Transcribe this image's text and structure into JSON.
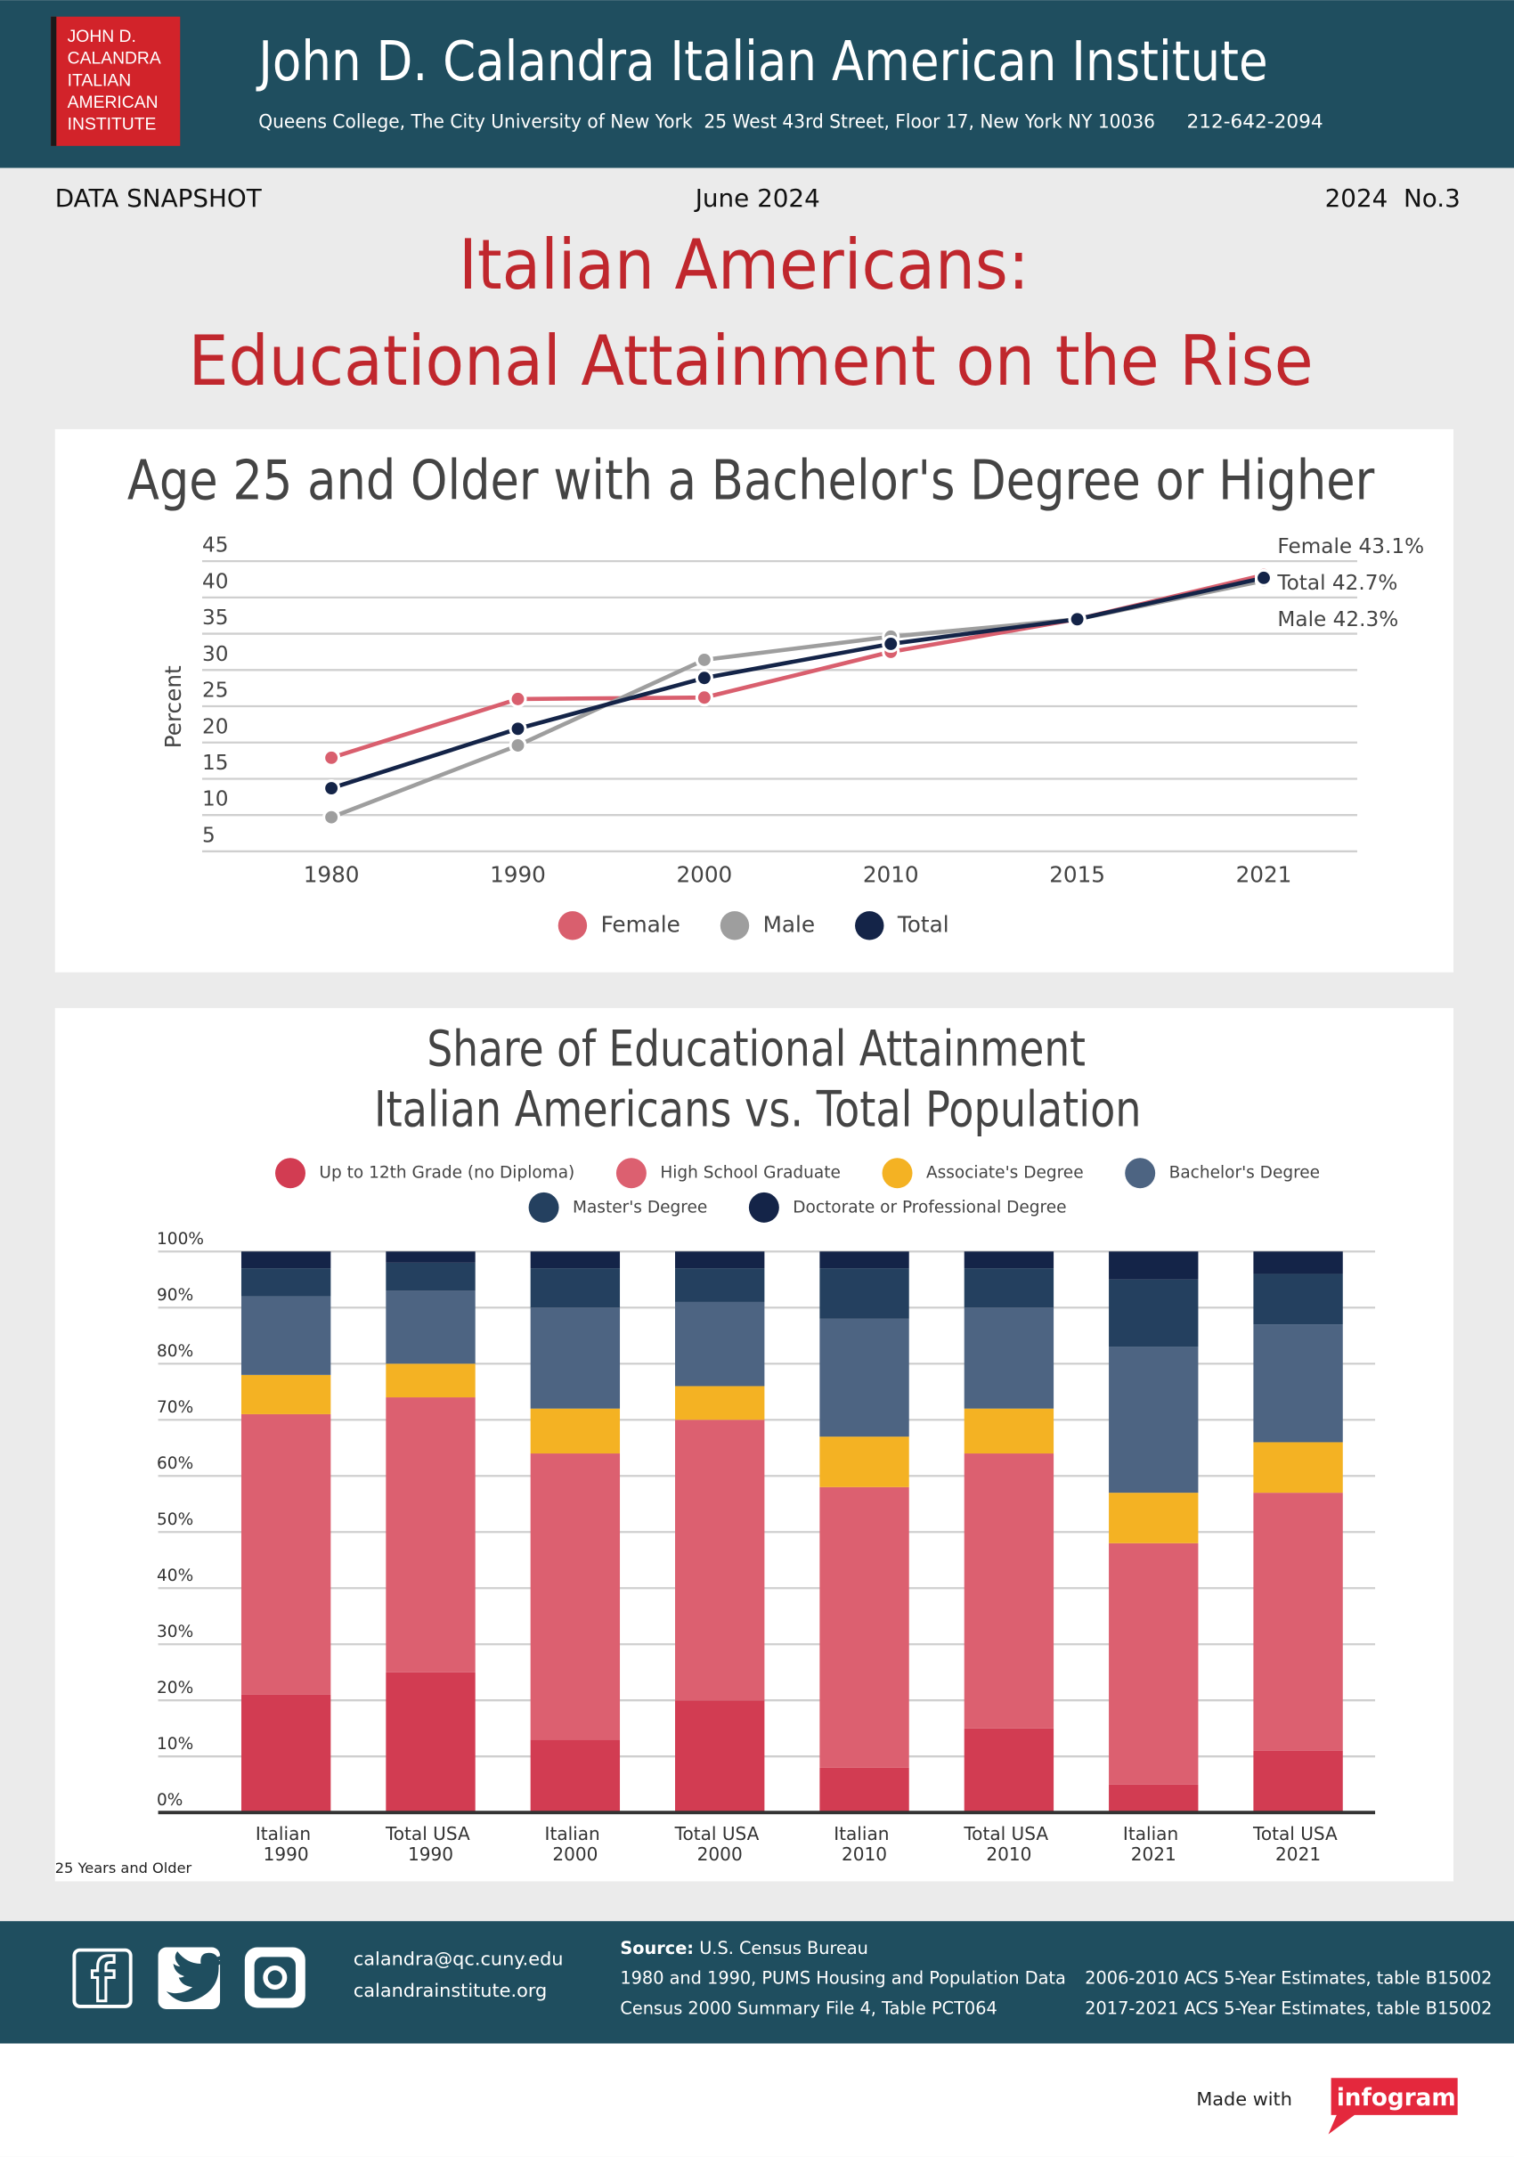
{
  "header": {
    "logo": [
      "JOHN D.",
      "CALANDRA",
      "ITALIAN",
      "AMERICAN",
      "INSTITUTE"
    ],
    "title": "John D. Calandra Italian American Institute",
    "address": "Queens College, The City University of New York  25 West 43rd Street, Floor 17, New York NY 10036",
    "phone": "212-642-2094"
  },
  "snapshot": {
    "label": "DATA SNAPSHOT",
    "date": "June 2024",
    "issue": "2024  No.3"
  },
  "title": [
    "Italian Americans:",
    "Educational Attainment on the Rise"
  ],
  "chart_data": [
    {
      "type": "line",
      "title": "Age 25 and Older with a Bachelor's Degree or Higher",
      "y_label": "Percent",
      "categories": [
        "1980",
        "1990",
        "2000",
        "2010",
        "2015",
        "2021"
      ],
      "ylim": [
        5,
        45
      ],
      "yticks": [
        5,
        10,
        15,
        20,
        25,
        30,
        35,
        40,
        45
      ],
      "grid": true,
      "legend": "bottom",
      "series": [
        {
          "name": "Female",
          "color": "#d95f6e",
          "values": [
            17.9,
            26.0,
            26.2,
            32.5,
            37.0,
            43.1
          ],
          "value_labels": [
            null,
            null,
            null,
            null,
            null,
            "Female 43.1%"
          ]
        },
        {
          "name": "Male",
          "color": "#9e9e9e",
          "values": [
            9.7,
            19.6,
            31.4,
            34.6,
            37.0,
            42.3
          ],
          "value_labels": [
            null,
            null,
            null,
            null,
            null,
            "Male 42.3%"
          ]
        },
        {
          "name": "Total",
          "color": "#142448",
          "values": [
            13.7,
            21.9,
            28.9,
            33.6,
            37.0,
            42.7
          ],
          "value_labels": [
            null,
            null,
            null,
            null,
            null,
            "Total 42.7%"
          ]
        }
      ]
    },
    {
      "type": "bar",
      "stacked": true,
      "title": [
        "Share of Educational Attainment",
        "Italian Americans vs. Total Population"
      ],
      "note": "25 Years and Older",
      "categories": [
        "Italian 1990",
        "Total USA 1990",
        "Italian 2000",
        "Total USA 2000",
        "Italian 2010",
        "Total USA 2010",
        "Italian 2021",
        "Total USA 2021"
      ],
      "ylim": [
        0,
        100
      ],
      "yticks": [
        {
          "value": 0,
          "label": "0%"
        },
        {
          "value": 10,
          "label": "10%"
        },
        {
          "value": 20,
          "label": "20%"
        },
        {
          "value": 30,
          "label": "30%"
        },
        {
          "value": 40,
          "label": "40%"
        },
        {
          "value": 50,
          "label": "50%"
        },
        {
          "value": 60,
          "label": "60%"
        },
        {
          "value": 70,
          "label": "70%"
        },
        {
          "value": 80,
          "label": "80%"
        },
        {
          "value": 90,
          "label": "90%"
        },
        {
          "value": 100,
          "label": "100%"
        }
      ],
      "grid": true,
      "legend": "top",
      "series": [
        {
          "name": "Up to 12th Grade (no Diploma)",
          "color": "#d23c52",
          "values": [
            21,
            25,
            13,
            20,
            8,
            15,
            5,
            11
          ]
        },
        {
          "name": "High School Graduate",
          "color": "#dc6070",
          "values": [
            50,
            49,
            51,
            50,
            50,
            49,
            43,
            46
          ]
        },
        {
          "name": "Associate's Degree",
          "color": "#f4b223",
          "values": [
            7,
            6,
            8,
            6,
            9,
            8,
            9,
            9
          ]
        },
        {
          "name": "Bachelor's Degree",
          "color": "#4d6482",
          "values": [
            14,
            13,
            18,
            15,
            21,
            18,
            26,
            21
          ]
        },
        {
          "name": "Master's Degree",
          "color": "#24405f",
          "values": [
            5,
            5,
            7,
            6,
            9,
            7,
            12,
            9
          ]
        },
        {
          "name": "Doctorate or Professional Degree",
          "color": "#142448",
          "values": [
            3,
            2,
            3,
            3,
            3,
            3,
            5,
            4
          ]
        }
      ]
    }
  ],
  "footer": {
    "email": "calandra@qc.cuny.edu",
    "website": "calandrainstitute.org",
    "source_label": "Source:",
    "source": "U.S. Census Bureau",
    "references": [
      "1980 and 1990, PUMS Housing and Population Data",
      "Census 2000 Summary File 4, Table PCT064",
      "2006-2010 ACS 5-Year Estimates, table B15002",
      "2017-2021 ACS 5-Year Estimates, table B15002"
    ]
  },
  "credit": {
    "made_with": "Made with",
    "brand": "infogram"
  }
}
